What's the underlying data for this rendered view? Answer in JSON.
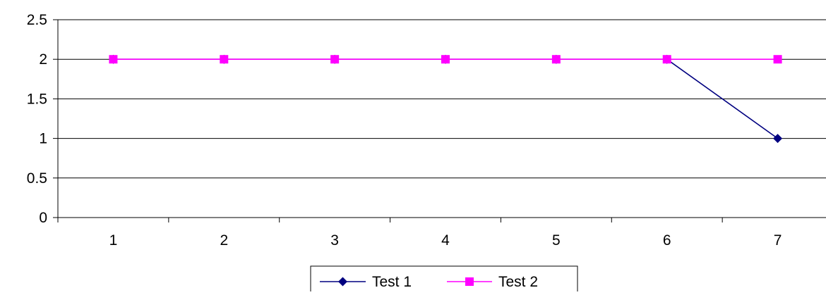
{
  "chart_data": {
    "type": "line",
    "categories": [
      "1",
      "2",
      "3",
      "4",
      "5",
      "6",
      "7"
    ],
    "ylim": [
      0,
      2.5
    ],
    "yticks": [
      "0",
      "0.5",
      "1",
      "1.5",
      "2",
      "2.5"
    ],
    "grid": "horizontal",
    "legend_position": "bottom",
    "series": [
      {
        "name": "Test 1",
        "values": [
          2,
          2,
          2,
          2,
          2,
          2,
          1
        ],
        "color": "#000080",
        "marker": "diamond"
      },
      {
        "name": "Test 2",
        "values": [
          2,
          2,
          2,
          2,
          2,
          2,
          2
        ],
        "color": "#FF00FF",
        "marker": "square"
      }
    ]
  }
}
